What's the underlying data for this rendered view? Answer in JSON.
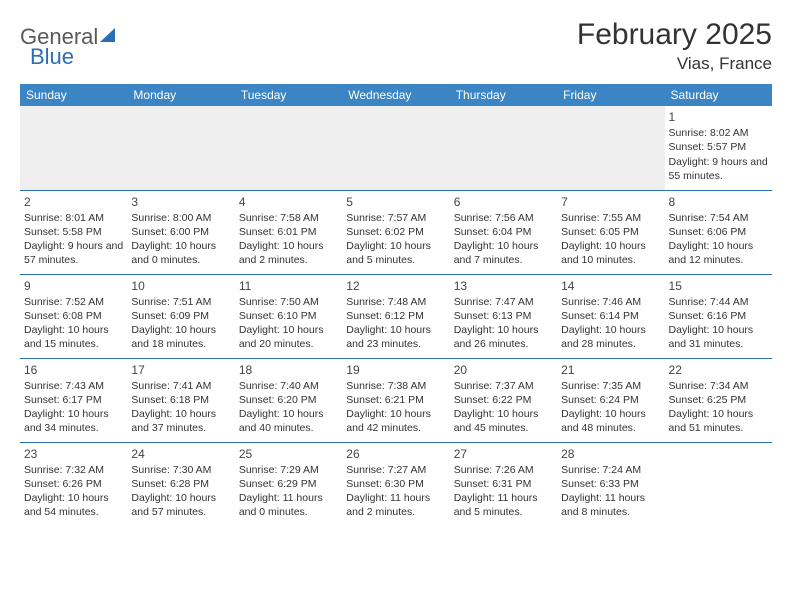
{
  "logo": {
    "part1": "General",
    "part2": "Blue"
  },
  "title": "February 2025",
  "location": "Vias, France",
  "colors": {
    "header_bg": "#3b85c4",
    "header_text": "#ffffff",
    "border": "#2b6fb3",
    "logo_gray": "#5a5a5a",
    "logo_blue": "#2b6fb3",
    "text": "#333333",
    "empty_bg": "#efefef"
  },
  "day_headers": [
    "Sunday",
    "Monday",
    "Tuesday",
    "Wednesday",
    "Thursday",
    "Friday",
    "Saturday"
  ],
  "weeks": [
    [
      null,
      null,
      null,
      null,
      null,
      null,
      {
        "n": "1",
        "sunrise": "8:02 AM",
        "sunset": "5:57 PM",
        "daylight": "9 hours and 55 minutes."
      }
    ],
    [
      {
        "n": "2",
        "sunrise": "8:01 AM",
        "sunset": "5:58 PM",
        "daylight": "9 hours and 57 minutes."
      },
      {
        "n": "3",
        "sunrise": "8:00 AM",
        "sunset": "6:00 PM",
        "daylight": "10 hours and 0 minutes."
      },
      {
        "n": "4",
        "sunrise": "7:58 AM",
        "sunset": "6:01 PM",
        "daylight": "10 hours and 2 minutes."
      },
      {
        "n": "5",
        "sunrise": "7:57 AM",
        "sunset": "6:02 PM",
        "daylight": "10 hours and 5 minutes."
      },
      {
        "n": "6",
        "sunrise": "7:56 AM",
        "sunset": "6:04 PM",
        "daylight": "10 hours and 7 minutes."
      },
      {
        "n": "7",
        "sunrise": "7:55 AM",
        "sunset": "6:05 PM",
        "daylight": "10 hours and 10 minutes."
      },
      {
        "n": "8",
        "sunrise": "7:54 AM",
        "sunset": "6:06 PM",
        "daylight": "10 hours and 12 minutes."
      }
    ],
    [
      {
        "n": "9",
        "sunrise": "7:52 AM",
        "sunset": "6:08 PM",
        "daylight": "10 hours and 15 minutes."
      },
      {
        "n": "10",
        "sunrise": "7:51 AM",
        "sunset": "6:09 PM",
        "daylight": "10 hours and 18 minutes."
      },
      {
        "n": "11",
        "sunrise": "7:50 AM",
        "sunset": "6:10 PM",
        "daylight": "10 hours and 20 minutes."
      },
      {
        "n": "12",
        "sunrise": "7:48 AM",
        "sunset": "6:12 PM",
        "daylight": "10 hours and 23 minutes."
      },
      {
        "n": "13",
        "sunrise": "7:47 AM",
        "sunset": "6:13 PM",
        "daylight": "10 hours and 26 minutes."
      },
      {
        "n": "14",
        "sunrise": "7:46 AM",
        "sunset": "6:14 PM",
        "daylight": "10 hours and 28 minutes."
      },
      {
        "n": "15",
        "sunrise": "7:44 AM",
        "sunset": "6:16 PM",
        "daylight": "10 hours and 31 minutes."
      }
    ],
    [
      {
        "n": "16",
        "sunrise": "7:43 AM",
        "sunset": "6:17 PM",
        "daylight": "10 hours and 34 minutes."
      },
      {
        "n": "17",
        "sunrise": "7:41 AM",
        "sunset": "6:18 PM",
        "daylight": "10 hours and 37 minutes."
      },
      {
        "n": "18",
        "sunrise": "7:40 AM",
        "sunset": "6:20 PM",
        "daylight": "10 hours and 40 minutes."
      },
      {
        "n": "19",
        "sunrise": "7:38 AM",
        "sunset": "6:21 PM",
        "daylight": "10 hours and 42 minutes."
      },
      {
        "n": "20",
        "sunrise": "7:37 AM",
        "sunset": "6:22 PM",
        "daylight": "10 hours and 45 minutes."
      },
      {
        "n": "21",
        "sunrise": "7:35 AM",
        "sunset": "6:24 PM",
        "daylight": "10 hours and 48 minutes."
      },
      {
        "n": "22",
        "sunrise": "7:34 AM",
        "sunset": "6:25 PM",
        "daylight": "10 hours and 51 minutes."
      }
    ],
    [
      {
        "n": "23",
        "sunrise": "7:32 AM",
        "sunset": "6:26 PM",
        "daylight": "10 hours and 54 minutes."
      },
      {
        "n": "24",
        "sunrise": "7:30 AM",
        "sunset": "6:28 PM",
        "daylight": "10 hours and 57 minutes."
      },
      {
        "n": "25",
        "sunrise": "7:29 AM",
        "sunset": "6:29 PM",
        "daylight": "11 hours and 0 minutes."
      },
      {
        "n": "26",
        "sunrise": "7:27 AM",
        "sunset": "6:30 PM",
        "daylight": "11 hours and 2 minutes."
      },
      {
        "n": "27",
        "sunrise": "7:26 AM",
        "sunset": "6:31 PM",
        "daylight": "11 hours and 5 minutes."
      },
      {
        "n": "28",
        "sunrise": "7:24 AM",
        "sunset": "6:33 PM",
        "daylight": "11 hours and 8 minutes."
      },
      null
    ]
  ],
  "labels": {
    "sunrise": "Sunrise:",
    "sunset": "Sunset:",
    "daylight": "Daylight:"
  }
}
